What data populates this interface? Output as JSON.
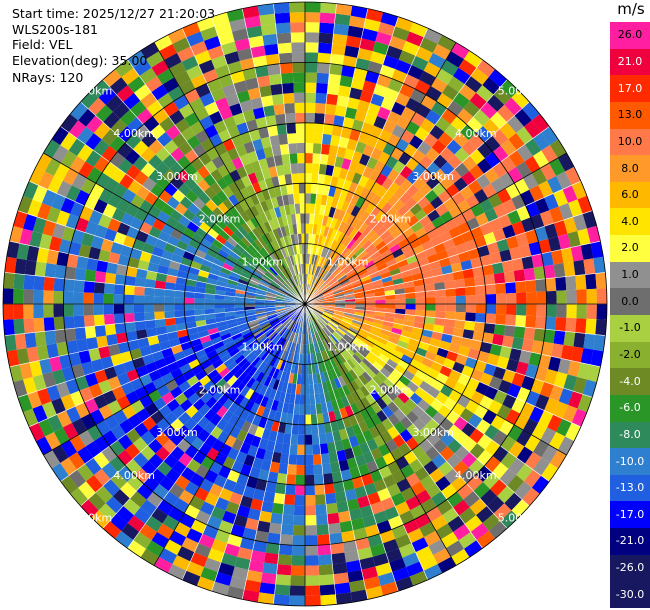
{
  "header": {
    "start_time": "Start time: 2025/12/27 21:20:03",
    "station": "WLS200s-181",
    "field": "Field: VEL",
    "elevation": "Elevation(deg): 35.00",
    "nrays": "NRays: 120"
  },
  "colorbar": {
    "unit": "m/s",
    "bins": [
      {
        "label": "26.0",
        "color": "#ff1fa0"
      },
      {
        "label": "21.0",
        "color": "#f0003c"
      },
      {
        "label": "17.0",
        "color": "#ff2a00"
      },
      {
        "label": "13.0",
        "color": "#ff5a00"
      },
      {
        "label": "10.0",
        "color": "#ff7a48"
      },
      {
        "label": "8.0",
        "color": "#ff9a2a"
      },
      {
        "label": "6.0",
        "color": "#ffb800"
      },
      {
        "label": "4.0",
        "color": "#ffe400"
      },
      {
        "label": "2.0",
        "color": "#ffff40"
      },
      {
        "label": "1.0",
        "color": "#909090"
      },
      {
        "label": "0.0",
        "color": "#6e6e6e"
      },
      {
        "label": "-1.0",
        "color": "#a8d040"
      },
      {
        "label": "-2.0",
        "color": "#8ab030"
      },
      {
        "label": "-4.0",
        "color": "#6e8a24"
      },
      {
        "label": "-6.0",
        "color": "#2a9628"
      },
      {
        "label": "-8.0",
        "color": "#2e8a5a"
      },
      {
        "label": "-10.0",
        "color": "#2f7fd0"
      },
      {
        "label": "-13.0",
        "color": "#2060e0"
      },
      {
        "label": "-17.0",
        "color": "#0000ff"
      },
      {
        "label": "-21.0",
        "color": "#000080"
      },
      {
        "label": "-26.0",
        "color": "#181860"
      },
      {
        "label": "-30.0",
        "color": "#181860"
      }
    ]
  },
  "chart_data": {
    "type": "heatmap",
    "projection": "polar PPI",
    "field": "VEL",
    "units": "m/s",
    "nrays": 120,
    "elevation_deg": 35.0,
    "range_rings_km": [
      1.0,
      2.0,
      3.0,
      4.0,
      5.0
    ],
    "range_ring_labels": [
      "1.00km",
      "2.00km",
      "3.00km",
      "4.00km",
      "5.00km"
    ],
    "max_range_km": 5.0,
    "radial_lines_deg": [
      0,
      30,
      60,
      90,
      120,
      150,
      180,
      210,
      240,
      270,
      300,
      330
    ],
    "approx_mean_velocity_by_azimuth_deg": {
      "0": 0,
      "45": 10,
      "90": 10,
      "135": 6,
      "180": -17,
      "225": -6,
      "270": -10,
      "315": -4
    },
    "vmin": -30.0,
    "vmax": 26.0
  }
}
